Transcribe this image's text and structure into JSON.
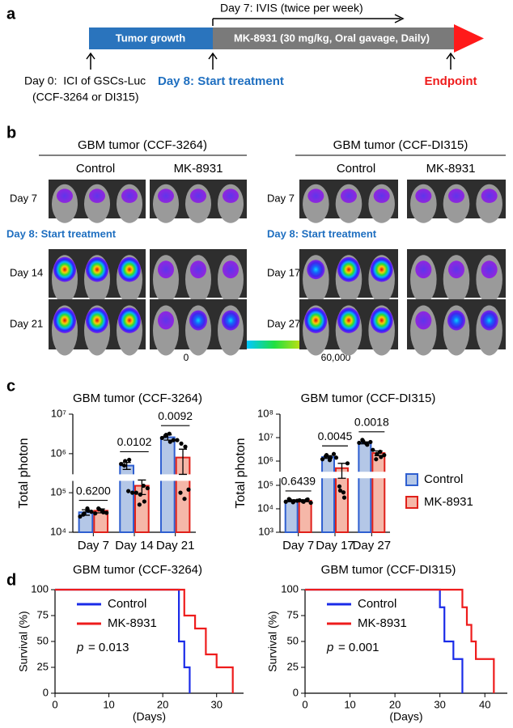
{
  "panel_labels": [
    "a",
    "b",
    "c",
    "d"
  ],
  "timeline": {
    "ivis_label": "Day 7: IVIS (twice per week)",
    "phase1": "Tumor growth",
    "phase2": "MK-8931 (30 mg/kg, Oral gavage, Daily)",
    "day0": [
      "Day 0:  ICI of GSCs-Luc",
      "(CCF-3264 or DI315)"
    ],
    "day8": "Day 8: Start treatment",
    "endpoint": "Endpoint"
  },
  "imaging": {
    "groups": [
      {
        "title": "GBM tumor (CCF-3264)",
        "columns": [
          "Control",
          "MK-8931"
        ],
        "rows": [
          "Day 7",
          "Day 14",
          "Day 21"
        ]
      },
      {
        "title": "GBM tumor (CCF-DI315)",
        "columns": [
          "Control",
          "MK-8931"
        ],
        "rows": [
          "Day 7",
          "Day 17",
          "Day 27"
        ]
      }
    ],
    "treatment_note": "Day 8: Start treatment",
    "colorbar": {
      "ticks": [
        0,
        {
          "value": 60000,
          "label": "60,000"
        }
      ]
    }
  },
  "chart_data": [
    {
      "type": "bar",
      "title": "GBM tumor (CCF-3264)",
      "ylabel": "Total photon",
      "log": true,
      "categories": [
        "Day 7",
        "Day 14",
        "Day 21"
      ],
      "ylim": [
        10000,
        10000000
      ],
      "ybreak": [
        200000,
        300000
      ],
      "yticks": [
        {
          "value": 10000,
          "label": "10⁴"
        },
        {
          "value": 100000,
          "label": "10⁵"
        },
        {
          "value": 1000000,
          "label": "10⁶"
        },
        {
          "value": 10000000,
          "label": "10⁷"
        }
      ],
      "annotations": [
        "0.6200",
        "0.0102",
        "0.0092"
      ],
      "series": [
        {
          "color": "#b4c7e7",
          "edgecolor": "#2f5fd0",
          "values": [
            32000,
            500000,
            2600000
          ],
          "errors": [
            5000,
            100000,
            400000
          ],
          "points": [
            [
              25000,
              30000,
              35000,
              28000,
              40000,
              33000
            ],
            [
              550000,
              650000,
              700000,
              500000,
              110000,
              100000
            ],
            [
              2500000,
              3000000,
              2000000,
              2800000,
              3200000,
              2200000
            ]
          ]
        },
        {
          "color": "#f5b7a8",
          "edgecolor": "#e0201a",
          "values": [
            35000,
            150000,
            800000
          ],
          "errors": [
            4000,
            60000,
            500000
          ],
          "points": [
            [
              30000,
              38000,
              32000,
              40000,
              35000,
              31000
            ],
            [
              100000,
              90000,
              60000,
              50000,
              150000,
              130000
            ],
            [
              2200000,
              1800000,
              1500000,
              100000,
              70000,
              120000
            ]
          ]
        }
      ]
    },
    {
      "type": "bar",
      "title": "GBM tumor (CCF-DI315)",
      "ylabel": "Total photon",
      "log": true,
      "legend": "right",
      "categories": [
        "Day 7",
        "Day 17",
        "Day 27"
      ],
      "ylim": [
        1000,
        100000000
      ],
      "ybreak": [
        200000,
        350000
      ],
      "yticks": [
        {
          "value": 1000,
          "label": "10³"
        },
        {
          "value": 10000,
          "label": "10⁴"
        },
        {
          "value": 100000,
          "label": "10⁵"
        },
        {
          "value": 1000000,
          "label": "10⁶"
        },
        {
          "value": 10000000,
          "label": "10⁷"
        },
        {
          "value": 100000000,
          "label": "10⁸"
        }
      ],
      "annotations": [
        "0.6439",
        "0.0045",
        "0.0018"
      ],
      "series": [
        {
          "name": "Control",
          "color": "#b4c7e7",
          "edgecolor": "#2f5fd0",
          "values": [
            22000,
            1500000,
            6000000
          ],
          "errors": [
            2000,
            200000,
            600000
          ],
          "points": [
            [
              20000,
              24000,
              21000,
              26000,
              19000,
              22000
            ],
            [
              1200000,
              1800000,
              1400000,
              1600000,
              1100000,
              2000000
            ],
            [
              6000000,
              7000000,
              5000000,
              8000000,
              5500000,
              6500000
            ]
          ]
        },
        {
          "name": "MK-8931",
          "color": "#f5b7a8",
          "edgecolor": "#e0201a",
          "values": [
            22000,
            500000,
            2200000
          ],
          "errors": [
            2000,
            300000,
            500000
          ],
          "points": [
            [
              23000,
              20000,
              25000,
              21000,
              24000,
              18000
            ],
            [
              1400000,
              60000,
              30000,
              90000,
              50000,
              800000
            ],
            [
              3000000,
              2000000,
              1500000,
              1200000,
              2500000,
              1800000
            ]
          ]
        }
      ]
    },
    {
      "type": "step",
      "title": "GBM tumor (CCF-3264)",
      "ylabel": "Survival (%)",
      "xlabel": "(Days)",
      "legend": "upper left",
      "xlim": [
        0,
        35
      ],
      "ylim": [
        0,
        100
      ],
      "xticks": [
        0,
        10,
        20,
        30
      ],
      "yticks": [
        0,
        25,
        50,
        75,
        100
      ],
      "annotation_symbol": "p",
      "annotation": "= 0.013",
      "series": [
        {
          "name": "Control",
          "color": "#1a2be8",
          "x": [
            0,
            23,
            24,
            25
          ],
          "values": [
            100,
            50,
            25,
            0
          ]
        },
        {
          "name": "MK-8931",
          "color": "#ee1c1c",
          "x": [
            0,
            24,
            26,
            28,
            30,
            33
          ],
          "values": [
            100,
            75,
            62.5,
            37.5,
            25,
            0
          ]
        }
      ]
    },
    {
      "type": "step",
      "title": "GBM tumor (CCF-DI315)",
      "ylabel": "Survival (%)",
      "xlabel": "(Days)",
      "legend": "upper left",
      "xlim": [
        0,
        45
      ],
      "ylim": [
        0,
        100
      ],
      "xticks": [
        0,
        10,
        20,
        30,
        40
      ],
      "yticks": [
        0,
        25,
        50,
        75,
        100
      ],
      "annotation_symbol": "p",
      "annotation": "= 0.001",
      "series": [
        {
          "name": "Control",
          "color": "#1a2be8",
          "x": [
            0,
            30,
            31,
            33,
            35
          ],
          "values": [
            100,
            83,
            50,
            33,
            0
          ]
        },
        {
          "name": "MK-8931",
          "color": "#ee1c1c",
          "x": [
            0,
            35,
            36,
            37,
            38,
            42
          ],
          "values": [
            100,
            83,
            66,
            50,
            33,
            0
          ]
        }
      ]
    }
  ]
}
